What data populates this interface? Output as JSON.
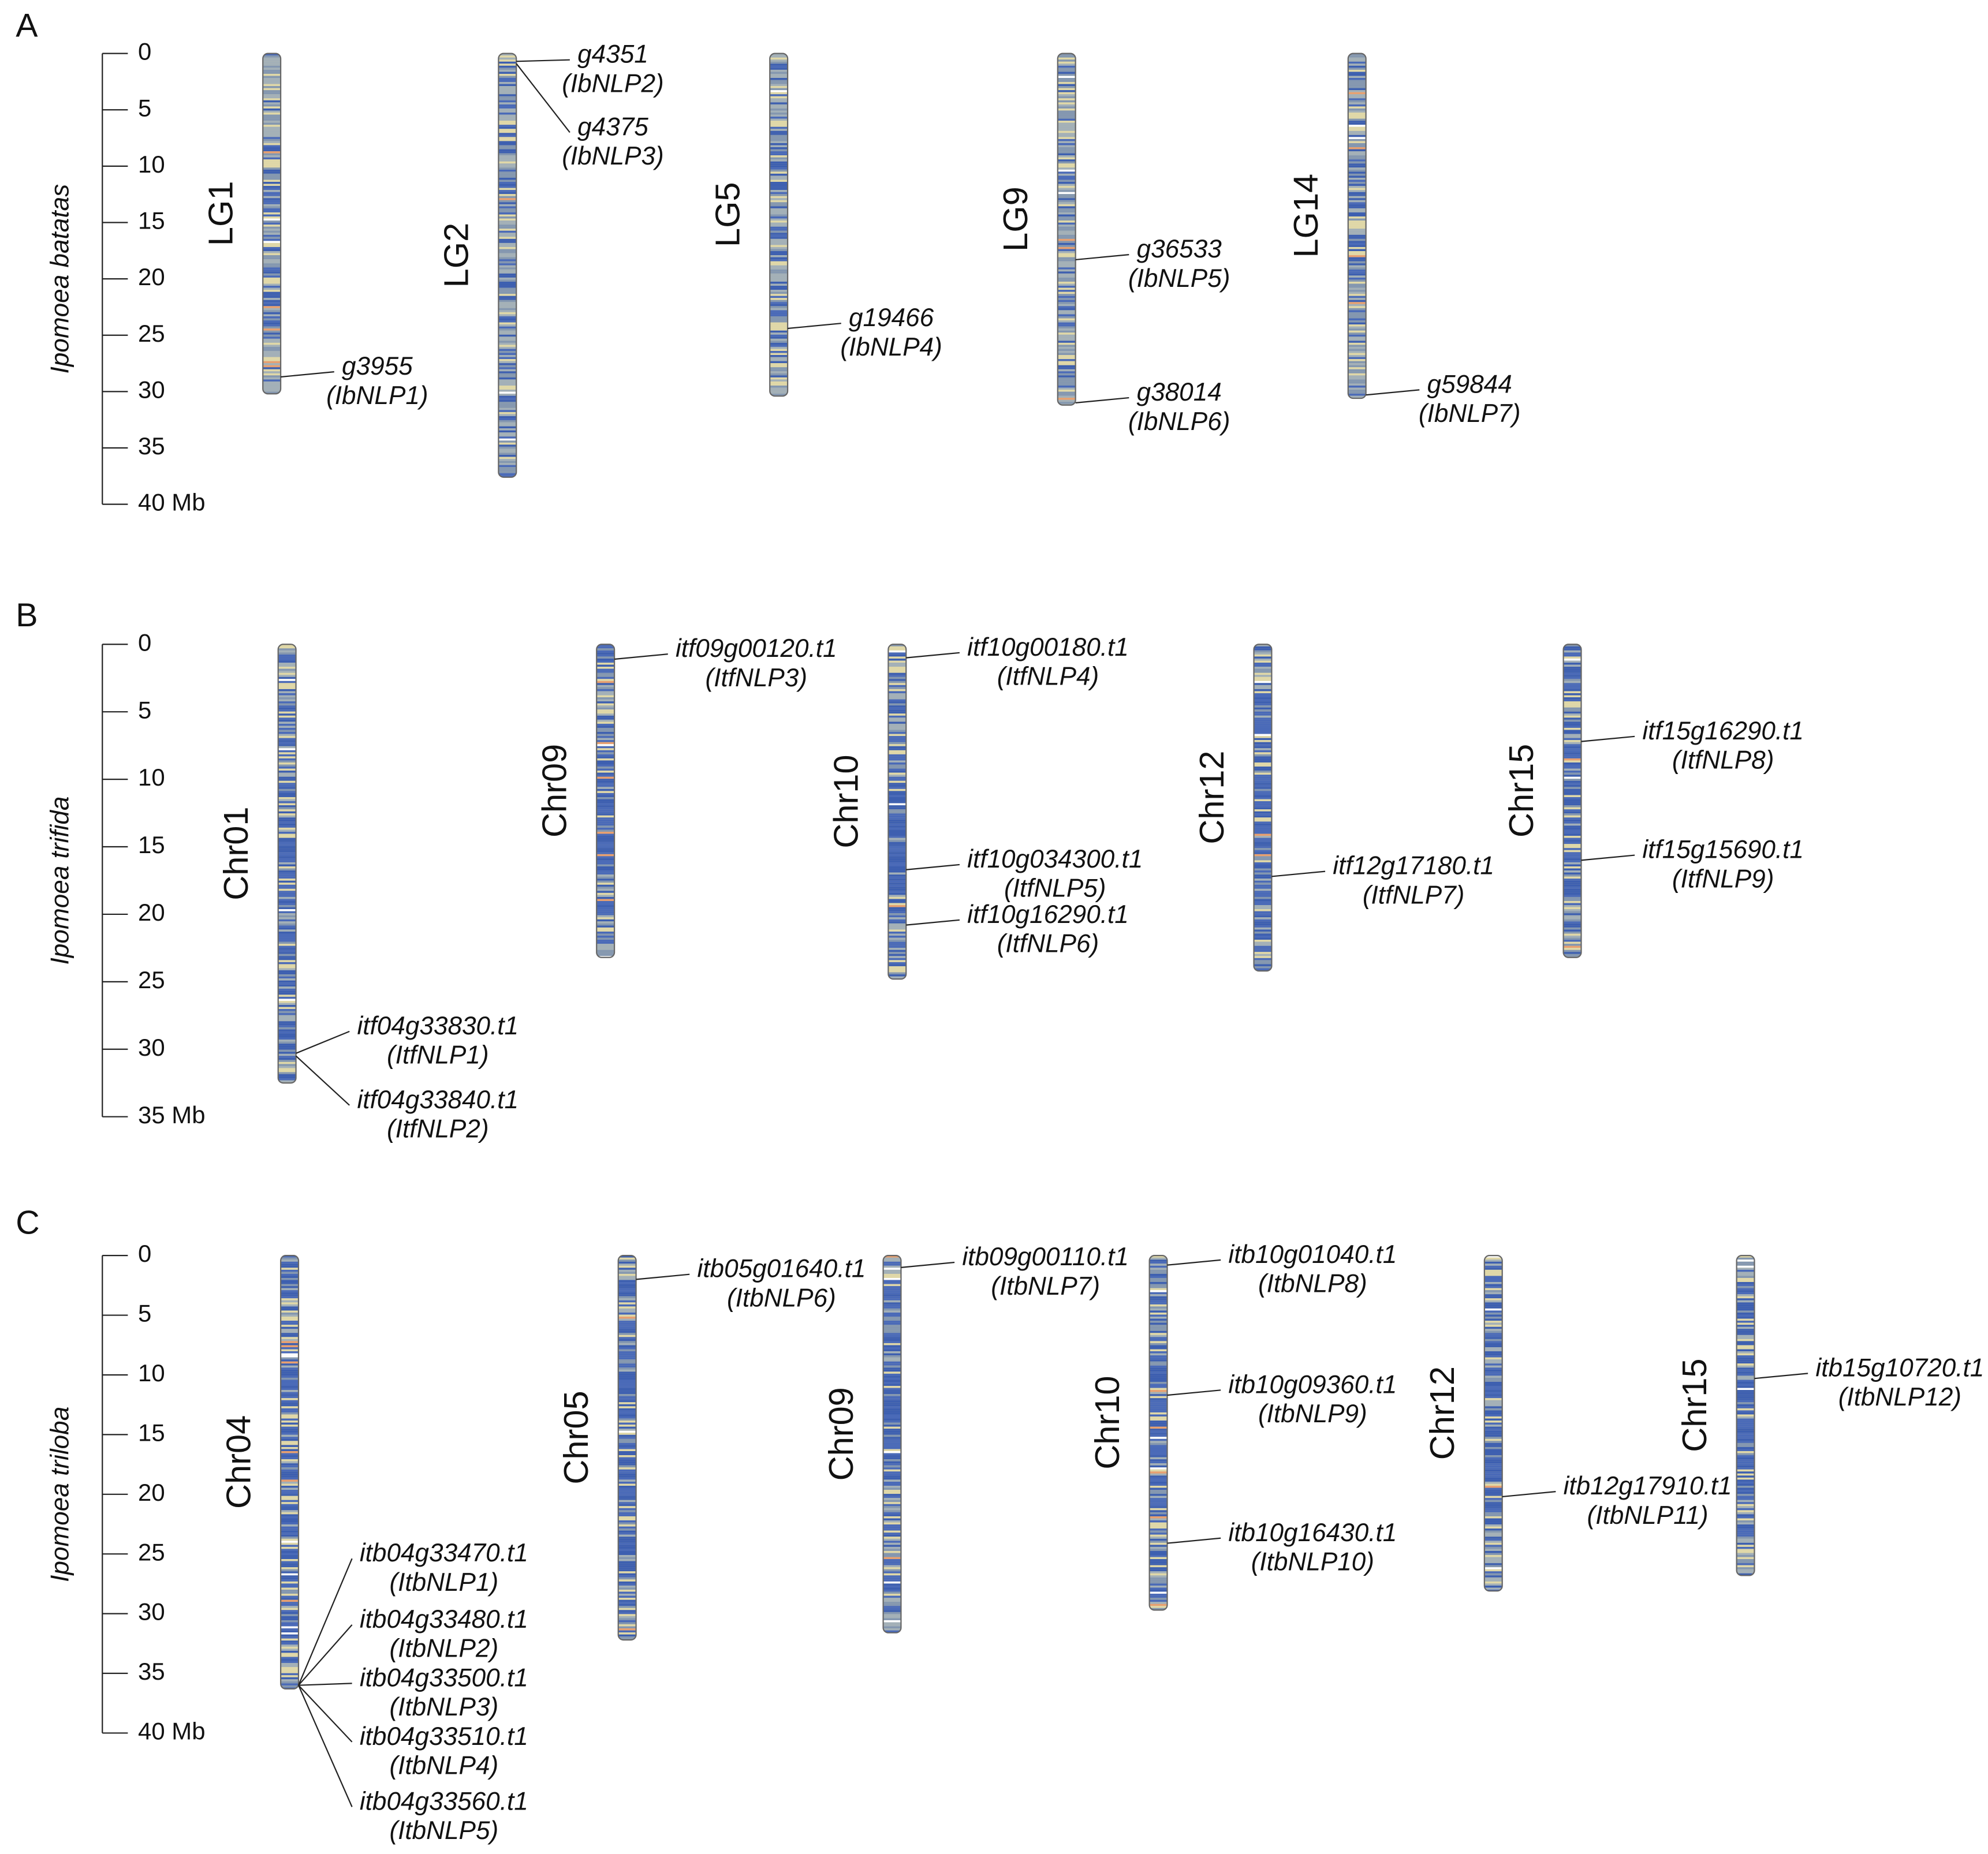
{
  "panels": [
    {
      "label": "A",
      "species": "Ipomoea batatas",
      "ticks": [
        0,
        5,
        10,
        15,
        20,
        25,
        30,
        35,
        {
          "value": 40,
          "label": "40 Mb"
        }
      ],
      "chromosomes": [
        {
          "name": "LG1",
          "length": 30.2,
          "genes": [
            {
              "id": "g3955",
              "alias": "(IbNLP1)",
              "position": 28.7
            }
          ]
        },
        {
          "name": "LG2",
          "length": 37.6,
          "genes": [
            {
              "id": "g4351",
              "alias": "(IbNLP2)",
              "position": 0.7
            },
            {
              "id": "g4375",
              "alias": "(IbNLP3)",
              "position": 0.9
            }
          ]
        },
        {
          "name": "LG5",
          "length": 30.4,
          "genes": [
            {
              "id": "g19466",
              "alias": "(IbNLP4)",
              "position": 24.4
            }
          ]
        },
        {
          "name": "LG9",
          "length": 31.2,
          "genes": [
            {
              "id": "g36533",
              "alias": "(IbNLP5)",
              "position": 18.3
            },
            {
              "id": "g38014",
              "alias": "(IbNLP6)",
              "position": 31.0
            }
          ]
        },
        {
          "name": "LG14",
          "length": 30.6,
          "genes": [
            {
              "id": "g59844",
              "alias": "(IbNLP7)",
              "position": 30.3
            }
          ]
        }
      ]
    },
    {
      "label": "B",
      "species": "Ipomoea trifida",
      "ticks": [
        0,
        5,
        10,
        15,
        20,
        25,
        30,
        {
          "value": 35,
          "label": "35 Mb"
        }
      ],
      "chromosomes": [
        {
          "name": "Chr01",
          "length": 32.5,
          "genes": [
            {
              "id": "itf04g33830.t1",
              "alias": "(ItfNLP1)",
              "position": 30.3
            },
            {
              "id": "itf04g33840.t1",
              "alias": "(ItfNLP2)",
              "position": 30.5
            }
          ]
        },
        {
          "name": "Chr09",
          "length": 23.2,
          "genes": [
            {
              "id": "itf09g00120.t1",
              "alias": "(ItfNLP3)",
              "position": 1.1
            }
          ]
        },
        {
          "name": "Chr10",
          "length": 24.8,
          "genes": [
            {
              "id": "itf10g00180.t1",
              "alias": "(ItfNLP4)",
              "position": 1.0
            },
            {
              "id": "itf10g034300.t1",
              "alias": "(ItfNLP5)",
              "position": 16.7
            },
            {
              "id": "itf10g16290.t1",
              "alias": "(ItfNLP6)",
              "position": 20.8
            }
          ]
        },
        {
          "name": "Chr12",
          "length": 24.2,
          "genes": [
            {
              "id": "itf12g17180.t1",
              "alias": "(ItfNLP7)",
              "position": 17.2
            }
          ]
        },
        {
          "name": "Chr15",
          "length": 23.2,
          "genes": [
            {
              "id": "itf15g16290.t1",
              "alias": "(ItfNLP8)",
              "position": 7.2
            },
            {
              "id": "itf15g15690.t1",
              "alias": "(ItfNLP9)",
              "position": 16.0
            }
          ]
        }
      ]
    },
    {
      "label": "C",
      "species": "Ipomoea triloba",
      "ticks": [
        0,
        5,
        10,
        15,
        20,
        25,
        30,
        35,
        {
          "value": 40,
          "label": "40 Mb"
        }
      ],
      "chromosomes": [
        {
          "name": "Chr04",
          "length": 36.3,
          "genes": [
            {
              "id": "itb04g33470.t1",
              "alias": "(ItbNLP1)",
              "position": 36.0
            },
            {
              "id": "itb04g33480.t1",
              "alias": "(ItbNLP2)",
              "position": 36.0
            },
            {
              "id": "itb04g33500.t1",
              "alias": "(ItbNLP3)",
              "position": 36.0
            },
            {
              "id": "itb04g33510.t1",
              "alias": "(ItbNLP4)",
              "position": 36.0
            },
            {
              "id": "itb04g33560.t1",
              "alias": "(ItbNLP5)",
              "position": 36.0
            }
          ]
        },
        {
          "name": "Chr05",
          "length": 32.2,
          "genes": [
            {
              "id": "itb05g01640.t1",
              "alias": "(ItbNLP6)",
              "position": 2.0
            }
          ]
        },
        {
          "name": "Chr09",
          "length": 31.6,
          "genes": [
            {
              "id": "itb09g00110.t1",
              "alias": "(ItbNLP7)",
              "position": 1.0
            }
          ]
        },
        {
          "name": "Chr10",
          "length": 29.7,
          "genes": [
            {
              "id": "itb10g01040.t1",
              "alias": "(ItbNLP8)",
              "position": 0.8
            },
            {
              "id": "itb10g09360.t1",
              "alias": "(ItbNLP9)",
              "position": 11.7
            },
            {
              "id": "itb10g16430.t1",
              "alias": "(ItbNLP10)",
              "position": 24.1
            }
          ]
        },
        {
          "name": "Chr12",
          "length": 28.1,
          "genes": [
            {
              "id": "itb12g17910.t1",
              "alias": "(ItbNLP11)",
              "position": 20.2
            }
          ]
        },
        {
          "name": "Chr15",
          "length": 26.8,
          "genes": [
            {
              "id": "itb15g10720.t1",
              "alias": "(ItbNLP12)",
              "position": 10.3
            }
          ]
        }
      ]
    }
  ]
}
